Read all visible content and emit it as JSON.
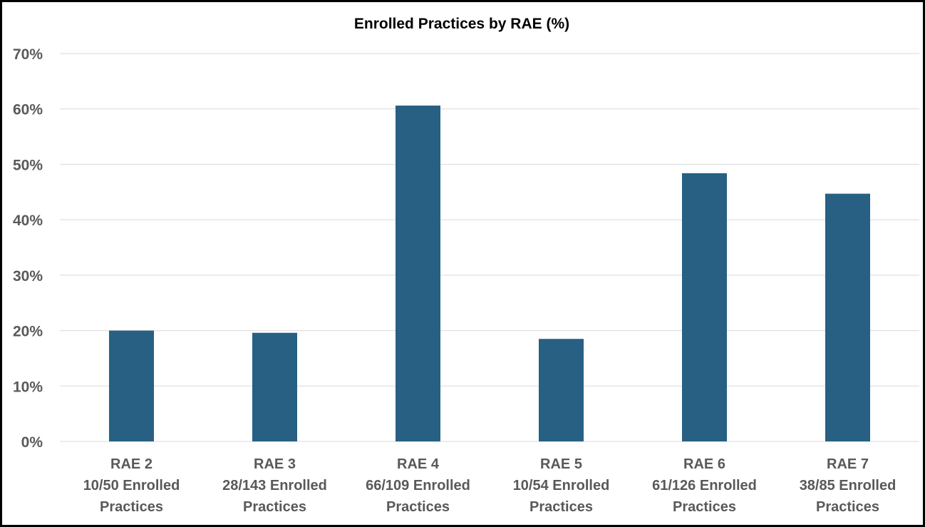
{
  "chart_data": {
    "type": "bar",
    "title": "Enrolled Practices by RAE (%)",
    "categories": [
      [
        "RAE 2",
        "10/50 Enrolled",
        "Practices"
      ],
      [
        "RAE 3",
        "28/143 Enrolled",
        "Practices"
      ],
      [
        "RAE 4",
        "66/109 Enrolled",
        "Practices"
      ],
      [
        "RAE 5",
        "10/54 Enrolled",
        "Practices"
      ],
      [
        "RAE 6",
        "61/126 Enrolled",
        "Practices"
      ],
      [
        "RAE 7",
        "38/85 Enrolled",
        "Practices"
      ]
    ],
    "values": [
      20.0,
      19.6,
      60.6,
      18.5,
      48.4,
      44.7
    ],
    "yticks": [
      "0%",
      "10%",
      "20%",
      "30%",
      "40%",
      "50%",
      "60%",
      "70%"
    ],
    "ylim": [
      0,
      70
    ],
    "grid": true,
    "legend": "none",
    "colors": {
      "bar": "#276083",
      "grid": "#d9d9d9",
      "tick_text": "#595959",
      "title_text": "#000000",
      "border": "#000000"
    }
  }
}
